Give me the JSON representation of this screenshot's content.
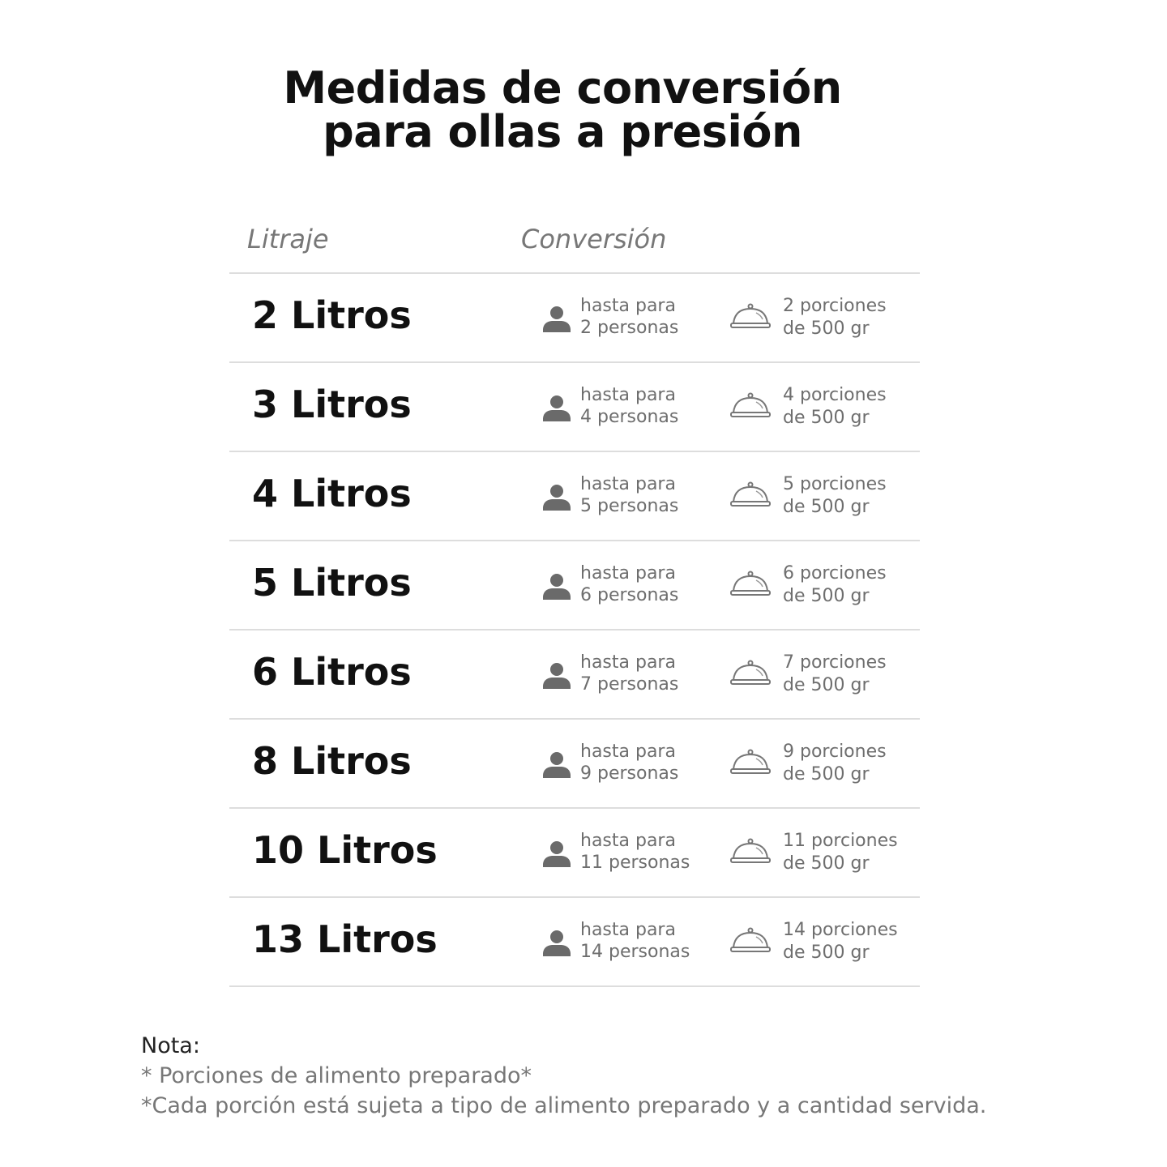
{
  "title": {
    "line1": "Medidas de conversión",
    "line2": "para ollas a presión"
  },
  "headers": {
    "litraje": "Litraje",
    "conversion": "Conversión"
  },
  "rows": [
    {
      "litros": "2 Litros",
      "p1": "hasta para",
      "p2": "2 personas",
      "d1": "2 porciones",
      "d2": "de 500 gr"
    },
    {
      "litros": "3 Litros",
      "p1": "hasta para",
      "p2": "4 personas",
      "d1": "4 porciones",
      "d2": "de 500 gr"
    },
    {
      "litros": "4 Litros",
      "p1": "hasta para",
      "p2": "5 personas",
      "d1": "5 porciones",
      "d2": "de 500 gr"
    },
    {
      "litros": "5 Litros",
      "p1": "hasta para",
      "p2": "6 personas",
      "d1": "6 porciones",
      "d2": "de 500 gr"
    },
    {
      "litros": "6 Litros",
      "p1": "hasta para",
      "p2": "7 personas",
      "d1": "7 porciones",
      "d2": "de 500 gr"
    },
    {
      "litros": "8 Litros",
      "p1": "hasta para",
      "p2": "9 personas",
      "d1": "9 porciones",
      "d2": "de 500 gr"
    },
    {
      "litros": "10 Litros",
      "p1": "hasta para",
      "p2": "11 personas",
      "d1": "11 porciones",
      "d2": "de 500 gr"
    },
    {
      "litros": "13 Litros",
      "p1": "hasta para",
      "p2": "14 personas",
      "d1": "14 porciones",
      "d2": "de 500 gr"
    }
  ],
  "icons": {
    "person": "person-icon",
    "serving": "serving-dome-icon"
  },
  "note": {
    "heading": "Nota:",
    "line1": "* Porciones de alimento preparado*",
    "line2": "*Cada porción está sujeta a tipo de alimento preparado y a cantidad servida."
  }
}
